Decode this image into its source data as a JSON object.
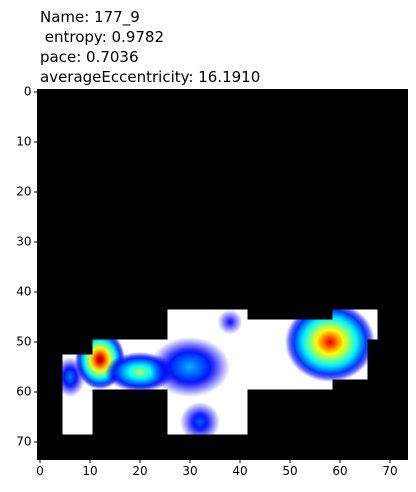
{
  "chart_data": {
    "type": "heatmap",
    "title": [
      "Name: 177_9",
      " entropy: 0.9782",
      "pace: 0.7036",
      "averageEccentricity: 16.1910"
    ],
    "background": "#000000",
    "fill": "#ffffff",
    "xlim": [
      -0.5,
      73.5
    ],
    "ylim": [
      73.5,
      -0.5
    ],
    "xticks": [
      0,
      10,
      20,
      30,
      40,
      50,
      60,
      70
    ],
    "yticks": [
      0,
      10,
      20,
      30,
      40,
      50,
      60,
      70
    ],
    "regions": [
      [
        4.5,
        52.5,
        10.5,
        68.5
      ],
      [
        10.5,
        49.5,
        25.5,
        59.5
      ],
      [
        25.5,
        43.5,
        41.5,
        68.5
      ],
      [
        41.5,
        45.5,
        58.5,
        59.5
      ],
      [
        58.5,
        43.5,
        65.5,
        57.5
      ],
      [
        65.5,
        43.5,
        67.5,
        49.5
      ]
    ],
    "hotspots": [
      {
        "x": 12,
        "y": 53.5,
        "rx": 5,
        "ry": 6,
        "peak": 1.0
      },
      {
        "x": 20,
        "y": 56,
        "rx": 7,
        "ry": 4,
        "peak": 0.55
      },
      {
        "x": 30,
        "y": 55,
        "rx": 8,
        "ry": 6,
        "peak": 0.3
      },
      {
        "x": 58,
        "y": 50,
        "rx": 9,
        "ry": 8,
        "peak": 0.9
      },
      {
        "x": 32,
        "y": 66,
        "rx": 4,
        "ry": 4,
        "peak": 0.22
      },
      {
        "x": 38,
        "y": 46,
        "rx": 2.5,
        "ry": 2.5,
        "peak": 0.15
      },
      {
        "x": 6,
        "y": 57,
        "rx": 3,
        "ry": 4,
        "peak": 0.25
      }
    ]
  }
}
